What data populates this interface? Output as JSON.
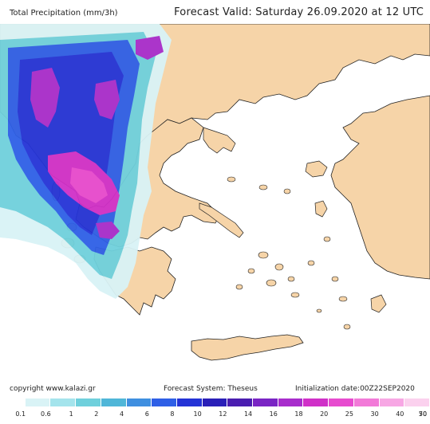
{
  "header": {
    "variable_title": "Total Precipitation (mm/3h)",
    "forecast_valid": "Forecast Valid:   Saturday 26.09.2020 at 12 UTC"
  },
  "map": {
    "sea_color": "#ffffff",
    "land_color": "#f6d4a8",
    "precip_palette": [
      "#ffffff",
      "#d9f3f6",
      "#a4e4ec",
      "#6fd0dc",
      "#4fb6d8",
      "#3f8fe0",
      "#2e5fe6",
      "#2433d6",
      "#2a1fb8",
      "#4a1db0",
      "#7a25c4",
      "#a82dcc",
      "#d030c8",
      "#e74bcf",
      "#f27ad8",
      "#f7a7e4"
    ]
  },
  "footer": {
    "copyright": "copyright  www.kalazi.gr",
    "forecast_system": "Forecast  System:  Theseus",
    "initialization": "Initialization  date:00Z22SEP2020"
  },
  "colorbar": {
    "colors": [
      "#ffffff",
      "#d9f3f6",
      "#a4e4ec",
      "#6fd0dc",
      "#4fb6d8",
      "#3f8fe0",
      "#2e5fe6",
      "#2433d6",
      "#2a1fb8",
      "#4a1db0",
      "#7a25c4",
      "#a82dcc",
      "#d030c8",
      "#e74bcf",
      "#f27ad8",
      "#f7a7e4",
      "#fbd1ee"
    ],
    "labels": [
      "0.1",
      "0.6",
      "1",
      "2",
      "4",
      "6",
      "8",
      "10",
      "12",
      "14",
      "16",
      "18",
      "20",
      "25",
      "30",
      "40",
      "50",
      "70"
    ]
  }
}
